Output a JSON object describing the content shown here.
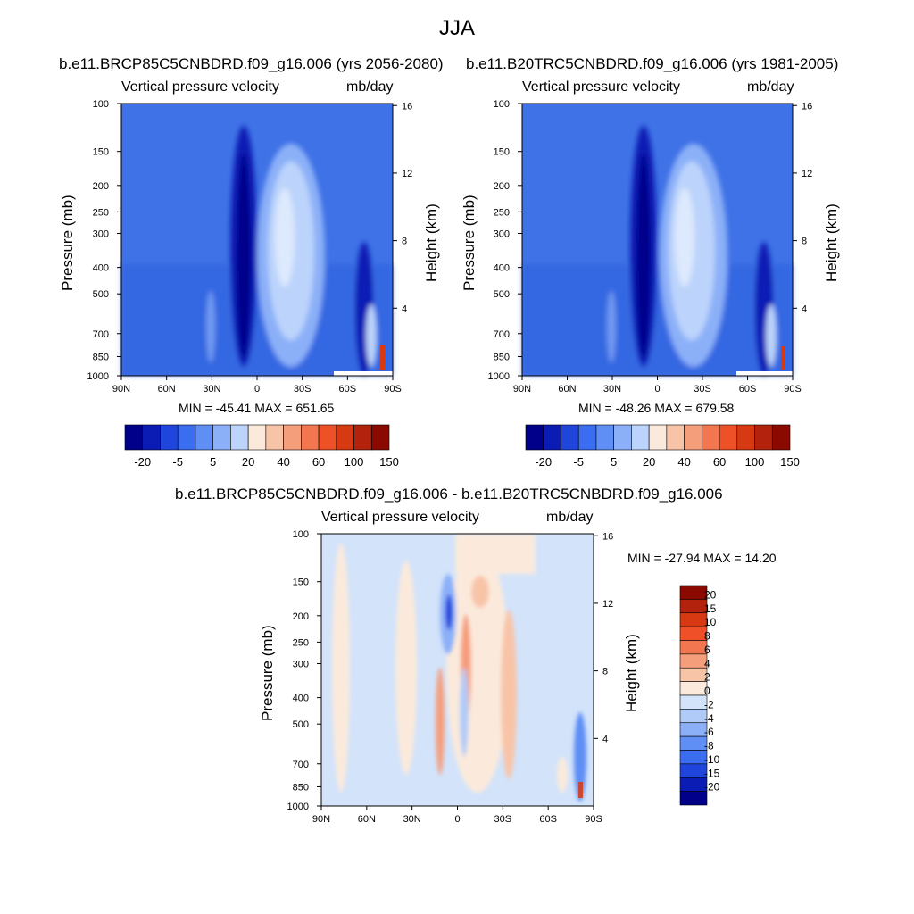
{
  "figure_title": "JJA",
  "chart_data": [
    {
      "type": "heatmap",
      "id": "panel_a",
      "title": "b.e11.BRCP85C5CNBDRD.f09_g16.006 (yrs 2056-2080)",
      "left_label": "Vertical pressure velocity",
      "right_label": "mb/day",
      "xlabel": "",
      "ylabel": "Pressure (mb)",
      "y2label": "Height (km)",
      "x_ticks": [
        "90N",
        "60N",
        "30N",
        "0",
        "30S",
        "60S",
        "90S"
      ],
      "y_ticks": [
        "100",
        "150",
        "200",
        "250",
        "300",
        "400",
        "500",
        "700",
        "850",
        "1000"
      ],
      "y2_ticks": [
        "16",
        "12",
        "8",
        "4"
      ],
      "min_max": "MIN = -45.41  MAX = 651.65",
      "colorbar_labels": [
        "-20",
        "-5",
        "5",
        "20",
        "40",
        "60",
        "100",
        "150"
      ],
      "colorbar_colors": [
        "#00008b",
        "#0a1cb4",
        "#1f45dc",
        "#3a6df0",
        "#5f8ef5",
        "#8cb0f8",
        "#bcd4fb",
        "#fbeadc",
        "#f8c4a8",
        "#f59e7c",
        "#f27650",
        "#ee5028",
        "#d73a12",
        "#b2220c",
        "#8b0a00"
      ],
      "field_summary": "mostly -5 to 5 mb/day; strong ascent (-20) near 10N; subsidence maximum near 20S; large positive values at 80-90S near surface"
    },
    {
      "type": "heatmap",
      "id": "panel_b",
      "title": "b.e11.B20TRC5CNBDRD.f09_g16.006 (yrs 1981-2005)",
      "left_label": "Vertical pressure velocity",
      "right_label": "mb/day",
      "xlabel": "",
      "ylabel": "Pressure (mb)",
      "y2label": "Height (km)",
      "x_ticks": [
        "90N",
        "60N",
        "30N",
        "0",
        "30S",
        "60S",
        "90S"
      ],
      "y_ticks": [
        "100",
        "150",
        "200",
        "250",
        "300",
        "400",
        "500",
        "700",
        "850",
        "1000"
      ],
      "y2_ticks": [
        "16",
        "12",
        "8",
        "4"
      ],
      "min_max": "MIN = -48.26  MAX = 679.58",
      "colorbar_labels": [
        "-20",
        "-5",
        "5",
        "20",
        "40",
        "60",
        "100",
        "150"
      ],
      "colorbar_colors": [
        "#00008b",
        "#0a1cb4",
        "#1f45dc",
        "#3a6df0",
        "#5f8ef5",
        "#8cb0f8",
        "#bcd4fb",
        "#fbeadc",
        "#f8c4a8",
        "#f59e7c",
        "#f27650",
        "#ee5028",
        "#d73a12",
        "#b2220c",
        "#8b0a00"
      ],
      "field_summary": "similar structure to the future period"
    },
    {
      "type": "heatmap",
      "id": "panel_diff",
      "title": "b.e11.BRCP85C5CNBDRD.f09_g16.006 - b.e11.B20TRC5CNBDRD.f09_g16.006",
      "left_label": "Vertical pressure velocity",
      "right_label": "mb/day",
      "xlabel": "",
      "ylabel": "Pressure (mb)",
      "y2label": "Height (km)",
      "x_ticks": [
        "90N",
        "60N",
        "30N",
        "0",
        "30S",
        "60S",
        "90S"
      ],
      "y_ticks": [
        "100",
        "150",
        "200",
        "250",
        "300",
        "400",
        "500",
        "700",
        "850",
        "1000"
      ],
      "y2_ticks": [
        "16",
        "12",
        "8",
        "4"
      ],
      "min_max": "MIN = -27.94  MAX =  14.20",
      "colorbar_labels": [
        "20",
        "15",
        "10",
        "8",
        "6",
        "4",
        "2",
        "0",
        "-2",
        "-4",
        "-6",
        "-8",
        "-10",
        "-15",
        "-20"
      ],
      "colorbar_colors": [
        "#8b0a00",
        "#b2220c",
        "#d73a12",
        "#f05028",
        "#f27650",
        "#f59e7c",
        "#f8c4a8",
        "#fbeadc",
        "#d2e3fa",
        "#b0cbf8",
        "#8cb0f8",
        "#5f8ef5",
        "#3a6df0",
        "#1f45dc",
        "#0a1cb4",
        "#00008b"
      ],
      "field_summary": "weak positive (0 to 2) and weak negative (-2 to 0) anomalies; negative anomaly around 10N aloft; positive bands near 10N-0 and 20-30S"
    }
  ]
}
